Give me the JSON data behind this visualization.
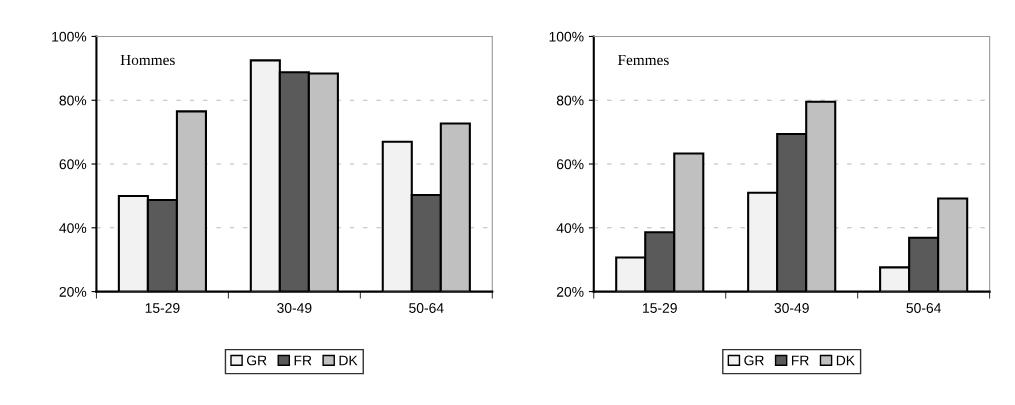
{
  "chart_data": [
    {
      "type": "bar",
      "title": "Hommes",
      "categories": [
        "15-29",
        "30-49",
        "50-64"
      ],
      "series": [
        {
          "name": "GR",
          "color": "#f2f2f2",
          "values": [
            50,
            92.5,
            67
          ]
        },
        {
          "name": "FR",
          "color": "#5a5a5a",
          "values": [
            48.7,
            88.8,
            50.3
          ]
        },
        {
          "name": "DK",
          "color": "#c0c0c0",
          "values": [
            76.5,
            88.4,
            72.7
          ]
        }
      ],
      "ylim": [
        20,
        100
      ],
      "yticks": [
        {
          "value": 20,
          "label": "20%"
        },
        {
          "value": 40,
          "label": "40%"
        },
        {
          "value": 60,
          "label": "60%"
        },
        {
          "value": 80,
          "label": "80%"
        },
        {
          "value": 100,
          "label": "100%"
        }
      ],
      "grid": "y",
      "legend": "bottom"
    },
    {
      "type": "bar",
      "title": "Femmes",
      "categories": [
        "15-29",
        "30-49",
        "50-64"
      ],
      "series": [
        {
          "name": "GR",
          "color": "#f2f2f2",
          "values": [
            30.7,
            51,
            27.6
          ]
        },
        {
          "name": "FR",
          "color": "#5a5a5a",
          "values": [
            38.6,
            69.4,
            36.9
          ]
        },
        {
          "name": "DK",
          "color": "#c0c0c0",
          "values": [
            63.3,
            79.5,
            49.2
          ]
        }
      ],
      "ylim": [
        20,
        100
      ],
      "yticks": [
        {
          "value": 20,
          "label": "20%"
        },
        {
          "value": 40,
          "label": "40%"
        },
        {
          "value": 60,
          "label": "60%"
        },
        {
          "value": 80,
          "label": "80%"
        },
        {
          "value": 100,
          "label": "100%"
        }
      ],
      "grid": "y",
      "legend": "bottom"
    }
  ]
}
